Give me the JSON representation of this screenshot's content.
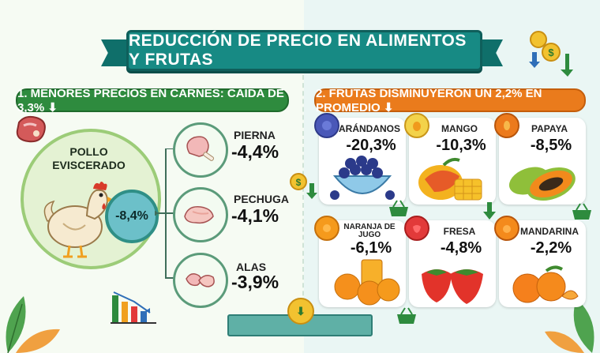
{
  "title": "REDUCCIÓN DE PRECIO EN ALIMENTOS Y FRUTAS",
  "left": {
    "header": "1. MENORES PRECIOS EN CARNES: CAÍDA DE 3,3% ⬇",
    "pollo_label": "POLLO EVISCERADO",
    "pollo_value": "-8,4%",
    "parts": [
      {
        "name": "PIERNA",
        "value": "-4,4%",
        "icon": "chicken-leg-icon"
      },
      {
        "name": "PECHUGA",
        "value": "-4,1%",
        "icon": "chicken-breast-icon"
      },
      {
        "name": "ALAS",
        "value": "-3,9%",
        "icon": "chicken-wings-icon"
      }
    ]
  },
  "right": {
    "header": "2. FRUTAS DISMINUYERON UN 2,2% EN PROMEDIO ⬇",
    "fruits": [
      {
        "name": "ARÁNDANOS",
        "value": "-20,3%",
        "icon": "blueberry-icon",
        "color": "#4a58b8"
      },
      {
        "name": "MANGO",
        "value": "-10,3%",
        "icon": "mango-icon",
        "color": "#f3b21f"
      },
      {
        "name": "PAPAYA",
        "value": "-8,5%",
        "icon": "papaya-icon",
        "color": "#ec7a1c"
      },
      {
        "name": "NARANJA DE JUGO",
        "value": "-6,1%",
        "icon": "orange-icon",
        "color": "#f59a1c"
      },
      {
        "name": "FRESA",
        "value": "-4,8%",
        "icon": "strawberry-icon",
        "color": "#e23a3a"
      },
      {
        "name": "MANDARINA",
        "value": "-2,2%",
        "icon": "mandarin-icon",
        "color": "#f48a1c"
      }
    ]
  },
  "colors": {
    "teal": "#178a84",
    "green": "#2e8b3e",
    "orange": "#ea7b1c"
  },
  "coin_symbol": "$"
}
